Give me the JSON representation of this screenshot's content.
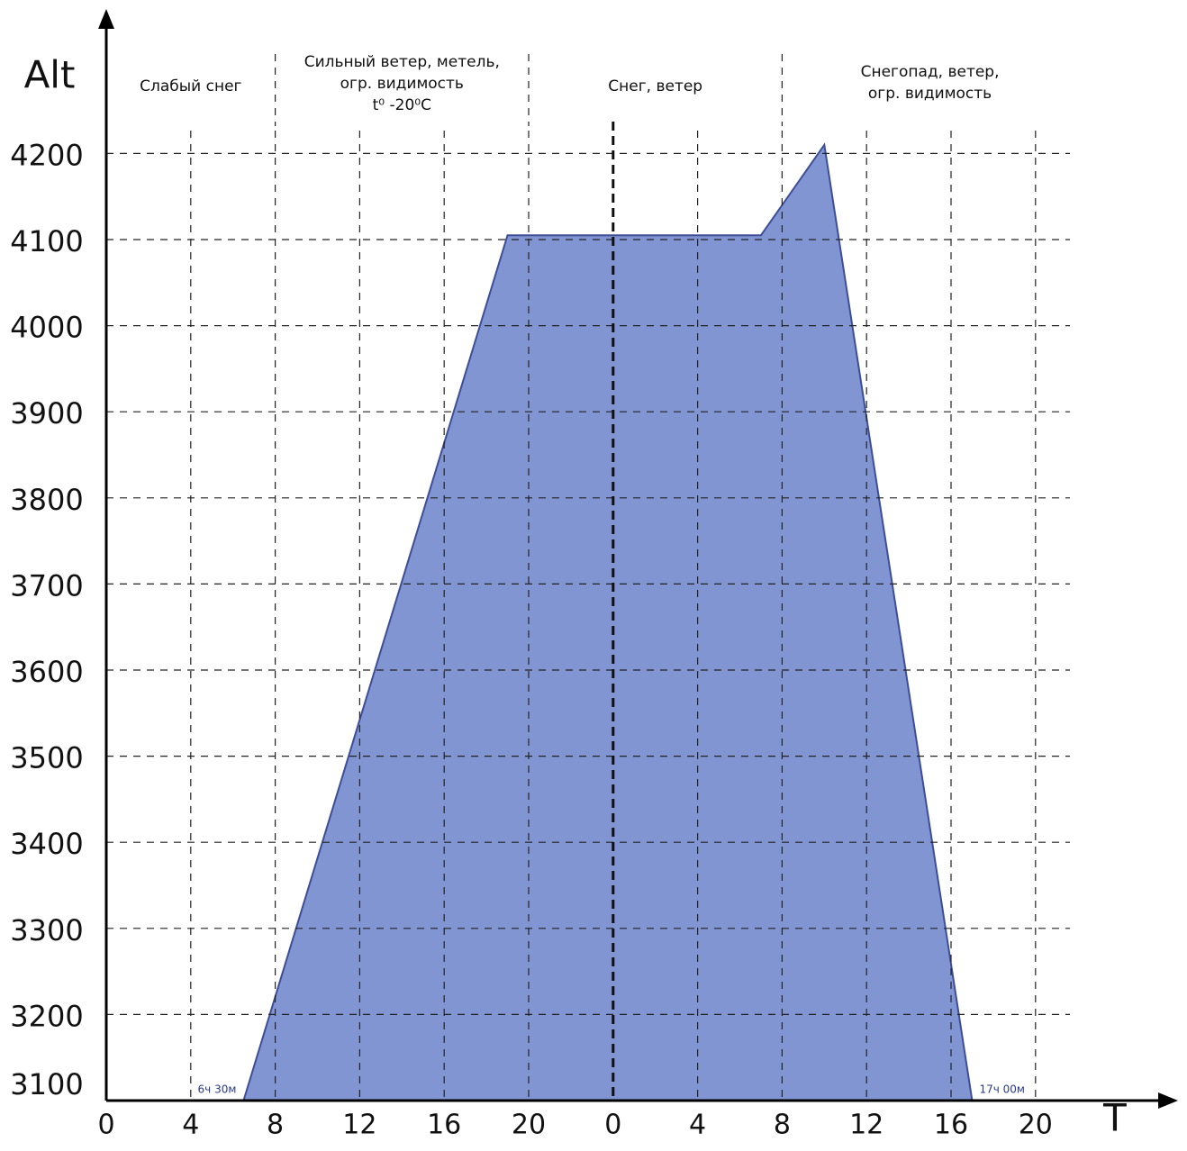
{
  "chart_data": {
    "type": "area",
    "x_label": "T",
    "y_label": "Alt",
    "x": [
      6.5,
      19,
      31,
      34,
      41
    ],
    "values": [
      3100,
      4105,
      4105,
      4210,
      3100
    ],
    "color": "#8095d2",
    "line_color": "#3e4d98",
    "xlim": [
      0,
      50
    ],
    "ylim": [
      3100,
      4350
    ],
    "xticks": [
      0,
      4,
      8,
      12,
      16,
      20,
      {
        "value": 24,
        "label": "0"
      },
      {
        "value": 28,
        "label": "4"
      },
      {
        "value": 32,
        "label": "8"
      },
      {
        "value": 36,
        "label": "12"
      },
      {
        "value": 40,
        "label": "16"
      },
      {
        "value": 44,
        "label": "20"
      }
    ],
    "yticks": [
      3100,
      3200,
      3300,
      3400,
      3500,
      3600,
      3700,
      3800,
      3900,
      4000,
      4100,
      4200
    ],
    "grid": true,
    "day_boundary": 24,
    "zone_boundaries": [
      8,
      20,
      32
    ],
    "zone_labels": [
      [
        "Слабый снег"
      ],
      [
        "Сильный ветер, метель,",
        "огр. видимость",
        "t⁰ -20⁰C"
      ],
      [
        "Снег, ветер"
      ],
      [
        "Снегопад, ветер,",
        "огр. видимость"
      ]
    ],
    "annotations": [
      {
        "text": "6ч 30м",
        "x": 6.5
      },
      {
        "text": "17ч 00м",
        "x": 41
      }
    ]
  }
}
